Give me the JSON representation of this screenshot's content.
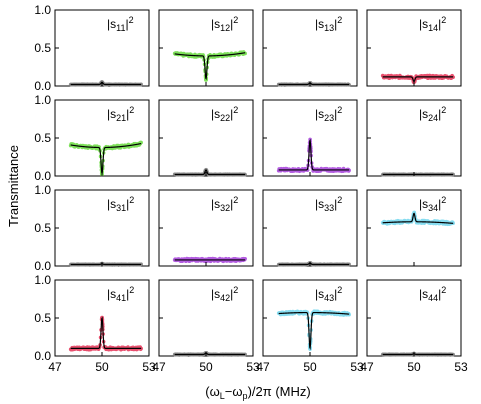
{
  "chart_data": {
    "type": "scatter",
    "layout": "4x4 grid of panels, shared axes",
    "ylabel": "Transmittance",
    "xlabel_parts": {
      "open": "(ω",
      "sub1": "L",
      "dash": "−ω",
      "sub2": "p",
      "close": ")/2π (MHz)"
    },
    "xlim": [
      47,
      53
    ],
    "ylim": [
      0,
      1
    ],
    "xticks": [
      47,
      50,
      53
    ],
    "yticks": [
      0.0,
      0.5,
      1.0
    ],
    "ytick_labels": [
      "0.0",
      "0.5",
      "1.0"
    ],
    "xtick_labels": [
      "47",
      "50",
      "53"
    ],
    "fit_color": "#000000",
    "panels": [
      {
        "label_base": "|s",
        "sub": "11",
        "label_end": "|",
        "sup": "2",
        "color": "#8c8c8c",
        "baseline": 0.02,
        "peak": 0.07,
        "dip": 0
      },
      {
        "label_base": "|s",
        "sub": "12",
        "label_end": "|",
        "sup": "2",
        "color": "#7ee05a",
        "baseline": 0.4,
        "peak": 0.5,
        "dip": 0,
        "curve": 0.04
      },
      {
        "label_base": "|s",
        "sub": "13",
        "label_end": "|",
        "sup": "2",
        "color": "#8c8c8c",
        "baseline": 0.02,
        "peak": 0.06,
        "dip": 0
      },
      {
        "label_base": "|s",
        "sub": "14",
        "label_end": "|",
        "sup": "2",
        "color": "#e8506e",
        "baseline": 0.12,
        "peak": 0.12,
        "dip": 0.06
      },
      {
        "label_base": "|s",
        "sub": "21",
        "label_end": "|",
        "sup": "2",
        "color": "#7ee05a",
        "baseline": 0.38,
        "peak": 0.4,
        "dip": 0.02,
        "curve": 0.05
      },
      {
        "label_base": "|s",
        "sub": "22",
        "label_end": "|",
        "sup": "2",
        "color": "#8c8c8c",
        "baseline": 0.02,
        "peak": 0.1,
        "dip": 0
      },
      {
        "label_base": "|s",
        "sub": "23",
        "label_end": "|",
        "sup": "2",
        "color": "#b35ce0",
        "baseline": 0.08,
        "peak": 0.55,
        "dip": 0
      },
      {
        "label_base": "|s",
        "sub": "24",
        "label_end": "|",
        "sup": "2",
        "color": "#8c8c8c",
        "baseline": 0.02,
        "peak": 0.04,
        "dip": 0
      },
      {
        "label_base": "|s",
        "sub": "31",
        "label_end": "|",
        "sup": "2",
        "color": "#8c8c8c",
        "baseline": 0.02,
        "peak": 0.05,
        "dip": 0
      },
      {
        "label_base": "|s",
        "sub": "32",
        "label_end": "|",
        "sup": "2",
        "color": "#b35ce0",
        "baseline": 0.08,
        "peak": 0.1,
        "dip": 0.06
      },
      {
        "label_base": "|s",
        "sub": "33",
        "label_end": "|",
        "sup": "2",
        "color": "#8c8c8c",
        "baseline": 0.02,
        "peak": 0.06,
        "dip": 0
      },
      {
        "label_base": "|s",
        "sub": "34",
        "label_end": "|",
        "sup": "2",
        "color": "#86dcf0",
        "baseline": 0.58,
        "peak": 0.72,
        "dip": 0.55,
        "curve": -0.02
      },
      {
        "label_base": "|s",
        "sub": "41",
        "label_end": "|",
        "sup": "2",
        "color": "#e8506e",
        "baseline": 0.1,
        "peak": 0.6,
        "dip": 0
      },
      {
        "label_base": "|s",
        "sub": "42",
        "label_end": "|",
        "sup": "2",
        "color": "#8c8c8c",
        "baseline": 0.02,
        "peak": 0.06,
        "dip": 0
      },
      {
        "label_base": "|s",
        "sub": "43",
        "label_end": "|",
        "sup": "2",
        "color": "#86dcf0",
        "baseline": 0.57,
        "peak": 0.58,
        "dip": 0.1,
        "curve": -0.02
      },
      {
        "label_base": "|s",
        "sub": "44",
        "label_end": "|",
        "sup": "2",
        "color": "#8c8c8c",
        "baseline": 0.02,
        "peak": 0.05,
        "dip": 0
      }
    ]
  }
}
